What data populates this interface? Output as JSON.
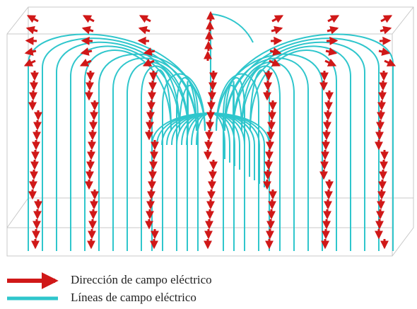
{
  "legend": {
    "items": [
      {
        "label": "Dirección de campo eléctrico"
      },
      {
        "label": "Líneas de campo eléctrico"
      }
    ]
  }
}
